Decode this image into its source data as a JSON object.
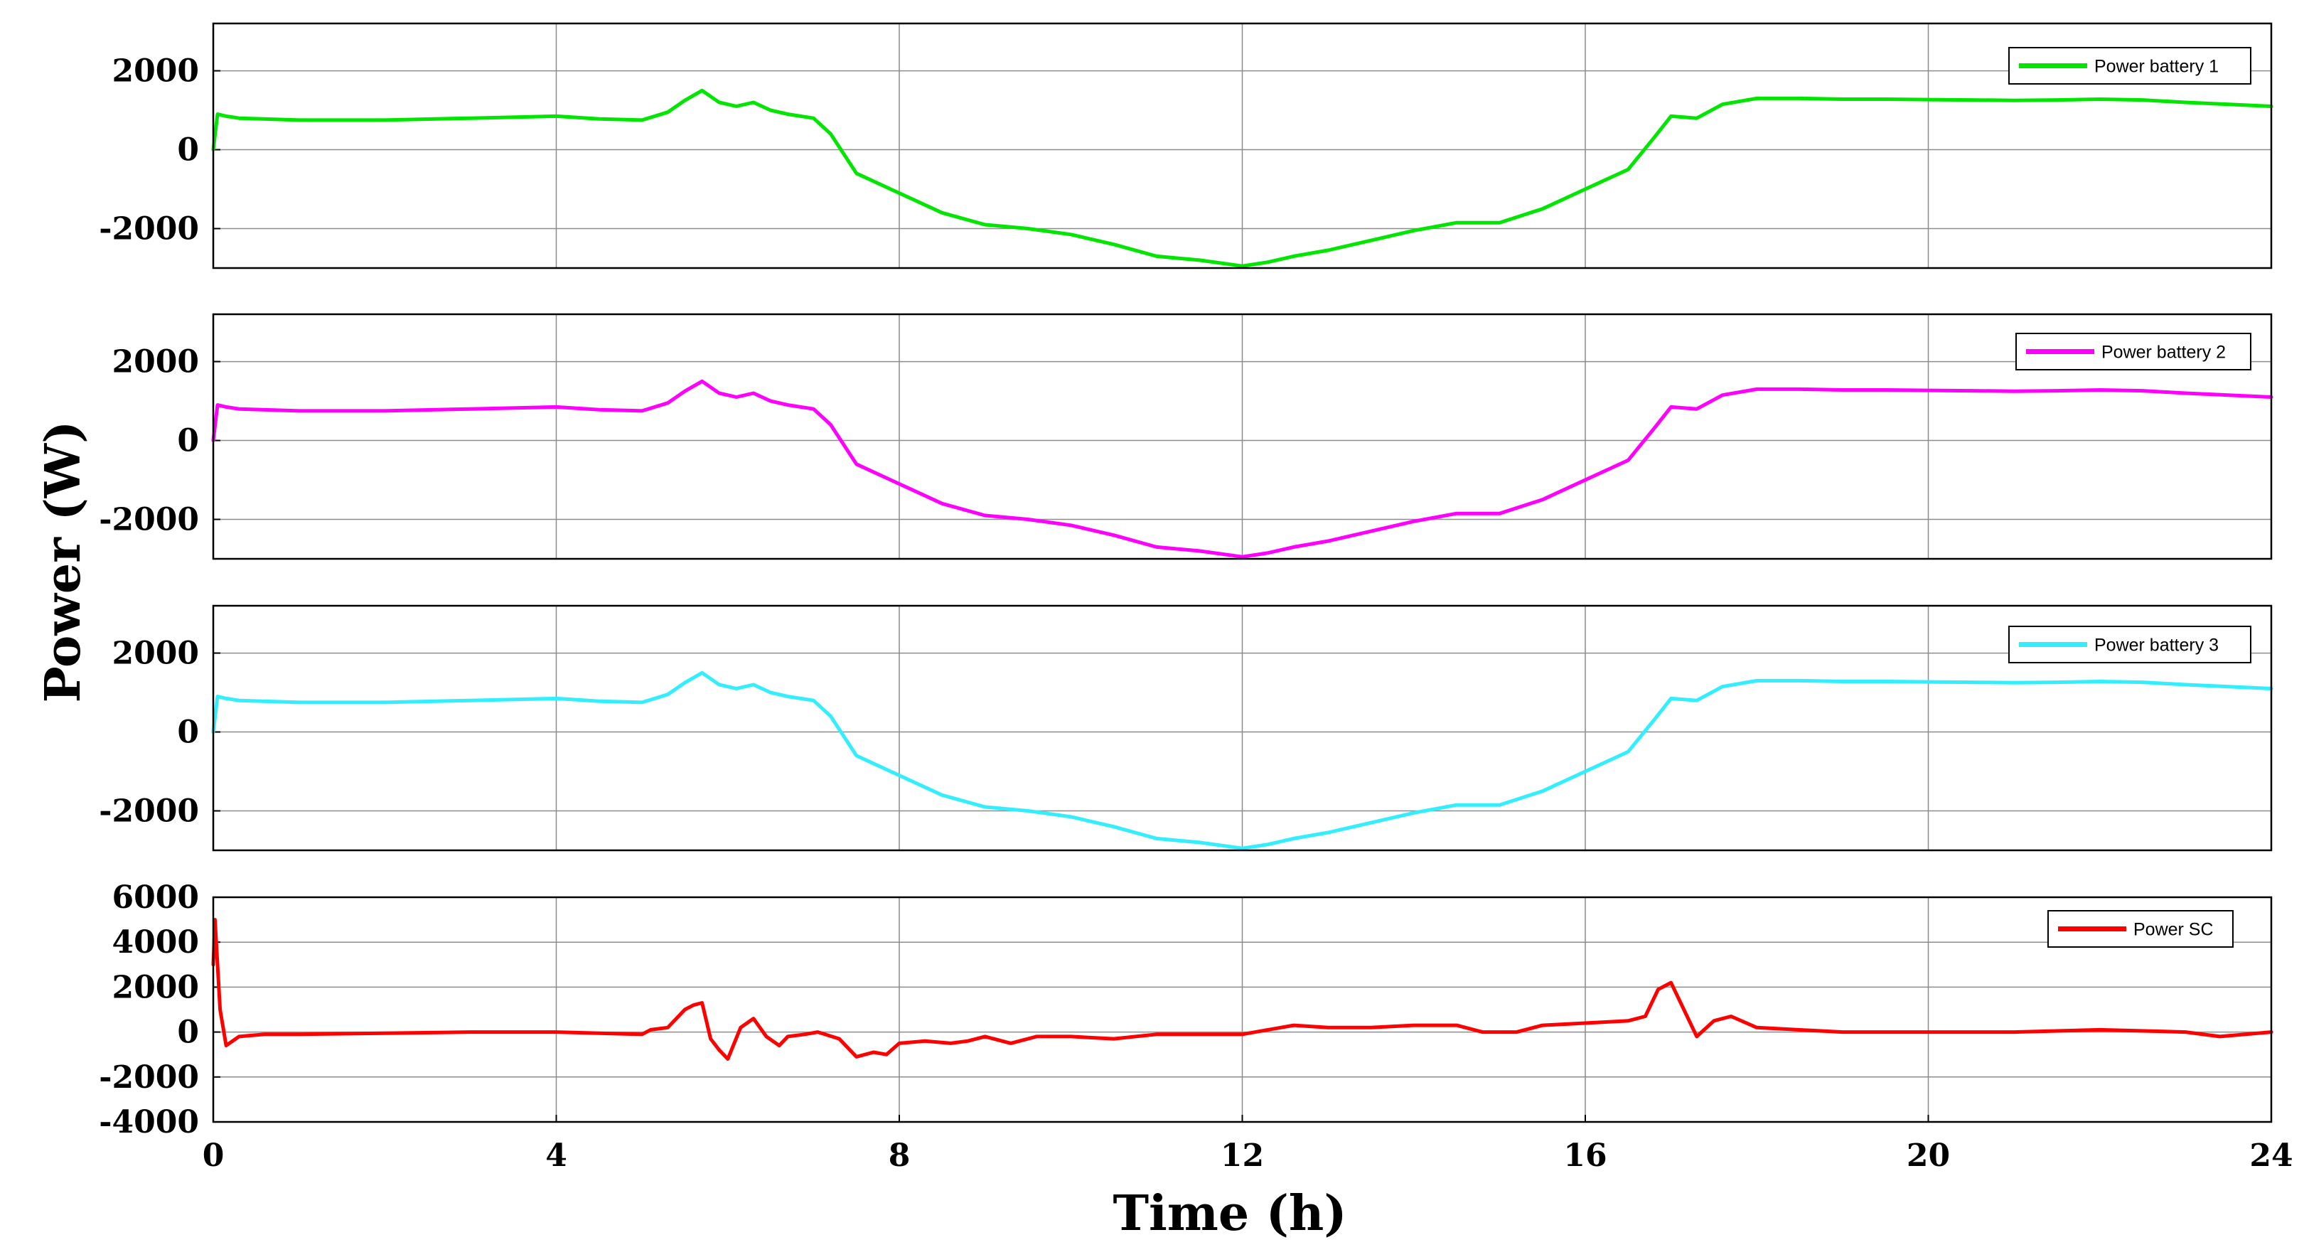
{
  "chart_data": {
    "type": "line",
    "xlabel": "Time (h)",
    "ylabel": "Power (W)",
    "xlim": [
      0,
      24
    ],
    "xticks": [
      "0",
      "4",
      "8",
      "12",
      "16",
      "20",
      "24"
    ],
    "grid": true,
    "panels": [
      {
        "legend": "Power battery 1",
        "color": "#00e600",
        "ylim": [
          -3000,
          3200
        ],
        "yticks": [
          "2000",
          "0",
          "-2000"
        ],
        "x": [
          0,
          0.05,
          0.15,
          0.3,
          1,
          2,
          3,
          4,
          4.5,
          5,
          5.3,
          5.5,
          5.7,
          5.9,
          6.1,
          6.3,
          6.5,
          6.7,
          7.0,
          7.2,
          7.5,
          8.0,
          8.5,
          9.0,
          9.5,
          10.0,
          10.5,
          11.0,
          11.5,
          12.0,
          12.3,
          12.6,
          13.0,
          13.5,
          14.0,
          14.5,
          15.0,
          15.5,
          16.0,
          16.5,
          16.8,
          17.0,
          17.3,
          17.6,
          18.0,
          18.5,
          19.0,
          19.5,
          20.0,
          20.5,
          21.0,
          21.5,
          22.0,
          22.5,
          23.0,
          23.5,
          24.0
        ],
        "y": [
          0,
          900,
          850,
          800,
          750,
          750,
          800,
          850,
          780,
          750,
          950,
          1250,
          1500,
          1200,
          1100,
          1200,
          1000,
          900,
          800,
          400,
          -600,
          -1100,
          -1600,
          -1900,
          -2000,
          -2150,
          -2400,
          -2700,
          -2800,
          -2950,
          -2850,
          -2700,
          -2550,
          -2300,
          -2050,
          -1850,
          -1850,
          -1500,
          -1000,
          -500,
          300,
          850,
          800,
          1150,
          1300,
          1300,
          1280,
          1280,
          1270,
          1260,
          1250,
          1260,
          1280,
          1260,
          1200,
          1150,
          1100
        ]
      },
      {
        "legend": "Power battery 2",
        "color": "#ff00ff",
        "ylim": [
          -3000,
          3200
        ],
        "yticks": [
          "2000",
          "0",
          "-2000"
        ],
        "x": [
          0,
          0.05,
          0.15,
          0.3,
          1,
          2,
          3,
          4,
          4.5,
          5,
          5.3,
          5.5,
          5.7,
          5.9,
          6.1,
          6.3,
          6.5,
          6.7,
          7.0,
          7.2,
          7.5,
          8.0,
          8.5,
          9.0,
          9.5,
          10.0,
          10.5,
          11.0,
          11.5,
          12.0,
          12.3,
          12.6,
          13.0,
          13.5,
          14.0,
          14.5,
          15.0,
          15.5,
          16.0,
          16.5,
          16.8,
          17.0,
          17.3,
          17.6,
          18.0,
          18.5,
          19.0,
          19.5,
          20.0,
          20.5,
          21.0,
          21.5,
          22.0,
          22.5,
          23.0,
          23.5,
          24.0
        ],
        "y": [
          0,
          900,
          850,
          800,
          750,
          750,
          800,
          850,
          780,
          750,
          950,
          1250,
          1500,
          1200,
          1100,
          1200,
          1000,
          900,
          800,
          400,
          -600,
          -1100,
          -1600,
          -1900,
          -2000,
          -2150,
          -2400,
          -2700,
          -2800,
          -2950,
          -2850,
          -2700,
          -2550,
          -2300,
          -2050,
          -1850,
          -1850,
          -1500,
          -1000,
          -500,
          300,
          850,
          800,
          1150,
          1300,
          1300,
          1280,
          1280,
          1270,
          1260,
          1250,
          1260,
          1280,
          1260,
          1200,
          1150,
          1100
        ]
      },
      {
        "legend": "Power battery 3",
        "color": "#33eeff",
        "ylim": [
          -3000,
          3200
        ],
        "yticks": [
          "2000",
          "0",
          "-2000"
        ],
        "x": [
          0,
          0.05,
          0.15,
          0.3,
          1,
          2,
          3,
          4,
          4.5,
          5,
          5.3,
          5.5,
          5.7,
          5.9,
          6.1,
          6.3,
          6.5,
          6.7,
          7.0,
          7.2,
          7.5,
          8.0,
          8.5,
          9.0,
          9.5,
          10.0,
          10.5,
          11.0,
          11.5,
          12.0,
          12.3,
          12.6,
          13.0,
          13.5,
          14.0,
          14.5,
          15.0,
          15.5,
          16.0,
          16.5,
          16.8,
          17.0,
          17.3,
          17.6,
          18.0,
          18.5,
          19.0,
          19.5,
          20.0,
          20.5,
          21.0,
          21.5,
          22.0,
          22.5,
          23.0,
          23.5,
          24.0
        ],
        "y": [
          0,
          900,
          850,
          800,
          750,
          750,
          800,
          850,
          780,
          750,
          950,
          1250,
          1500,
          1200,
          1100,
          1200,
          1000,
          900,
          800,
          400,
          -600,
          -1100,
          -1600,
          -1900,
          -2000,
          -2150,
          -2400,
          -2700,
          -2800,
          -2950,
          -2850,
          -2700,
          -2550,
          -2300,
          -2050,
          -1850,
          -1850,
          -1500,
          -1000,
          -500,
          300,
          850,
          800,
          1150,
          1300,
          1300,
          1280,
          1280,
          1270,
          1260,
          1250,
          1260,
          1280,
          1260,
          1200,
          1150,
          1100
        ]
      },
      {
        "legend": "Power SC",
        "color": "#ff0000",
        "ylim": [
          -4000,
          6000
        ],
        "yticks": [
          "6000",
          "4000",
          "2000",
          "0",
          "-2000",
          "-4000"
        ],
        "x": [
          0,
          0.02,
          0.08,
          0.15,
          0.3,
          0.6,
          1,
          2,
          3,
          4,
          4.5,
          5.0,
          5.1,
          5.3,
          5.5,
          5.6,
          5.7,
          5.8,
          5.9,
          6.0,
          6.15,
          6.3,
          6.45,
          6.6,
          6.7,
          6.9,
          7.05,
          7.3,
          7.5,
          7.7,
          7.85,
          8.0,
          8.3,
          8.6,
          8.8,
          9.0,
          9.3,
          9.6,
          10.0,
          10.5,
          11.0,
          11.5,
          12.0,
          12.3,
          12.6,
          13.0,
          13.5,
          14.0,
          14.5,
          14.8,
          15.2,
          15.5,
          16.0,
          16.5,
          16.7,
          16.85,
          17.0,
          17.15,
          17.3,
          17.5,
          17.7,
          18.0,
          19.0,
          20.0,
          21.0,
          22.0,
          23.0,
          23.4,
          24.0
        ],
        "y": [
          3000,
          5000,
          1000,
          -600,
          -200,
          -100,
          -100,
          -50,
          0,
          0,
          -50,
          -100,
          100,
          200,
          1000,
          1200,
          1300,
          -300,
          -800,
          -1200,
          200,
          600,
          -200,
          -600,
          -200,
          -100,
          0,
          -300,
          -1100,
          -900,
          -1000,
          -500,
          -400,
          -500,
          -400,
          -200,
          -500,
          -200,
          -200,
          -300,
          -100,
          -100,
          -100,
          100,
          300,
          200,
          200,
          300,
          300,
          0,
          0,
          300,
          400,
          500,
          700,
          1900,
          2200,
          1000,
          -200,
          500,
          700,
          200,
          0,
          0,
          0,
          100,
          0,
          -200,
          0
        ]
      }
    ]
  }
}
